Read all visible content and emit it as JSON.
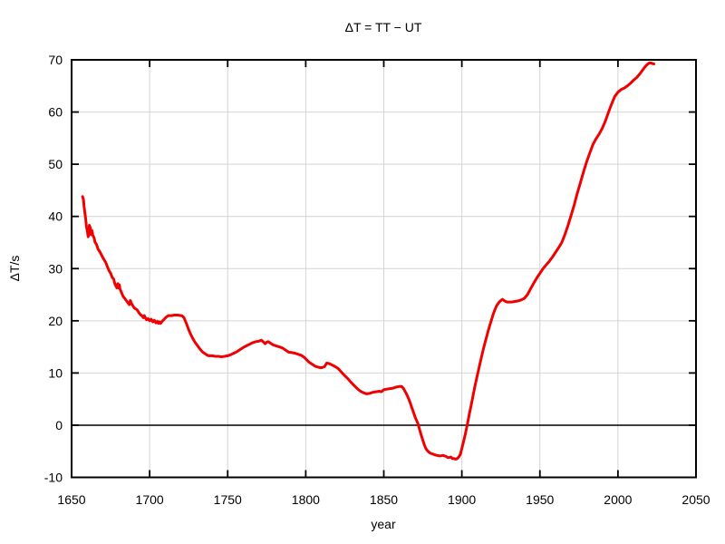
{
  "chart_data": {
    "type": "line",
    "title": "ΔT = TT − UT",
    "xlabel": "year",
    "ylabel": "ΔT/s",
    "xlim": [
      1650,
      2050
    ],
    "ylim": [
      -10,
      70
    ],
    "x_ticks": [
      1650,
      1700,
      1750,
      1800,
      1850,
      1900,
      1950,
      2000,
      2050
    ],
    "y_ticks": [
      -10,
      0,
      10,
      20,
      30,
      40,
      50,
      60,
      70
    ],
    "grid": true,
    "zero_line_at": 0,
    "legend": "none",
    "colors": {
      "line": "#f00000",
      "grid": "#d4d4d4",
      "axis": "#000000",
      "text": "#000000",
      "background": "#ffffff"
    },
    "series": [
      {
        "name": "ΔT",
        "points": [
          [
            1657,
            43.8
          ],
          [
            1657.6,
            43.2
          ],
          [
            1658,
            41.9
          ],
          [
            1658.6,
            40.5
          ],
          [
            1659,
            39.6
          ],
          [
            1659.5,
            38.0
          ],
          [
            1660,
            37.4
          ],
          [
            1660.6,
            36.1
          ],
          [
            1661,
            36.8
          ],
          [
            1661.4,
            38.3
          ],
          [
            1662,
            37.8
          ],
          [
            1662.5,
            36.5
          ],
          [
            1663,
            37.3
          ],
          [
            1663.6,
            36.4
          ],
          [
            1664.5,
            35.8
          ],
          [
            1665,
            35.1
          ],
          [
            1666,
            34.6
          ],
          [
            1667,
            33.7
          ],
          [
            1668,
            33.3
          ],
          [
            1669,
            32.7
          ],
          [
            1670,
            32.1
          ],
          [
            1671,
            31.6
          ],
          [
            1672,
            31.1
          ],
          [
            1673,
            30.3
          ],
          [
            1674,
            29.6
          ],
          [
            1675,
            29.1
          ],
          [
            1676,
            28.3
          ],
          [
            1677,
            28.0
          ],
          [
            1677.5,
            27.3
          ],
          [
            1678,
            26.9
          ],
          [
            1679,
            26.3
          ],
          [
            1679.6,
            27.1
          ],
          [
            1680,
            26.3
          ],
          [
            1680.6,
            26.9
          ],
          [
            1681,
            26.1
          ],
          [
            1682,
            25.4
          ],
          [
            1683,
            24.7
          ],
          [
            1684,
            24.3
          ],
          [
            1685,
            23.9
          ],
          [
            1686,
            23.5
          ],
          [
            1687,
            23.1
          ],
          [
            1687.6,
            23.9
          ],
          [
            1688.4,
            23.3
          ],
          [
            1689,
            23.0
          ],
          [
            1690,
            22.5
          ],
          [
            1691,
            22.3
          ],
          [
            1692,
            22.1
          ],
          [
            1693,
            21.6
          ],
          [
            1694,
            21.2
          ],
          [
            1695,
            21.0
          ],
          [
            1696,
            20.6
          ],
          [
            1696.6,
            21.0
          ],
          [
            1697.4,
            20.5
          ],
          [
            1698,
            20.2
          ],
          [
            1699,
            20.4
          ],
          [
            1700,
            20.0
          ],
          [
            1701,
            20.3
          ],
          [
            1702,
            19.8
          ],
          [
            1703,
            20.1
          ],
          [
            1704,
            19.6
          ],
          [
            1705,
            19.9
          ],
          [
            1705.6,
            19.5
          ],
          [
            1706.4,
            19.8
          ],
          [
            1707,
            19.5
          ],
          [
            1708,
            19.9
          ],
          [
            1709,
            20.2
          ],
          [
            1710,
            20.5
          ],
          [
            1711,
            20.8
          ],
          [
            1712,
            21.0
          ],
          [
            1714,
            21.0
          ],
          [
            1716,
            21.1
          ],
          [
            1718,
            21.1
          ],
          [
            1720,
            21.0
          ],
          [
            1721,
            20.9
          ],
          [
            1722,
            20.6
          ],
          [
            1723,
            19.9
          ],
          [
            1724,
            19.1
          ],
          [
            1725,
            18.3
          ],
          [
            1726,
            17.6
          ],
          [
            1727,
            17.0
          ],
          [
            1728,
            16.4
          ],
          [
            1729,
            15.9
          ],
          [
            1730,
            15.5
          ],
          [
            1731,
            15.1
          ],
          [
            1732,
            14.7
          ],
          [
            1733,
            14.3
          ],
          [
            1734,
            14.0
          ],
          [
            1735,
            13.8
          ],
          [
            1736,
            13.6
          ],
          [
            1737,
            13.4
          ],
          [
            1738,
            13.3
          ],
          [
            1740,
            13.3
          ],
          [
            1742,
            13.2
          ],
          [
            1744,
            13.2
          ],
          [
            1746,
            13.1
          ],
          [
            1748,
            13.2
          ],
          [
            1750,
            13.3
          ],
          [
            1752,
            13.5
          ],
          [
            1754,
            13.8
          ],
          [
            1756,
            14.1
          ],
          [
            1758,
            14.5
          ],
          [
            1760,
            14.9
          ],
          [
            1762,
            15.2
          ],
          [
            1764,
            15.5
          ],
          [
            1766,
            15.8
          ],
          [
            1768,
            16.0
          ],
          [
            1770,
            16.1
          ],
          [
            1771.5,
            16.3
          ],
          [
            1773,
            15.9
          ],
          [
            1774,
            15.6
          ],
          [
            1775,
            15.9
          ],
          [
            1776,
            16.0
          ],
          [
            1777.5,
            15.7
          ],
          [
            1779,
            15.4
          ],
          [
            1781,
            15.2
          ],
          [
            1783,
            15.0
          ],
          [
            1785,
            14.8
          ],
          [
            1787,
            14.4
          ],
          [
            1789,
            14.0
          ],
          [
            1791,
            13.9
          ],
          [
            1793,
            13.8
          ],
          [
            1795,
            13.6
          ],
          [
            1797,
            13.4
          ],
          [
            1799,
            13.0
          ],
          [
            1800,
            12.7
          ],
          [
            1802,
            12.1
          ],
          [
            1804,
            11.7
          ],
          [
            1806,
            11.3
          ],
          [
            1808,
            11.1
          ],
          [
            1810,
            11.0
          ],
          [
            1812,
            11.2
          ],
          [
            1813.5,
            11.9
          ],
          [
            1815,
            11.8
          ],
          [
            1817,
            11.5
          ],
          [
            1819,
            11.2
          ],
          [
            1821,
            10.8
          ],
          [
            1823,
            10.1
          ],
          [
            1825,
            9.5
          ],
          [
            1827,
            8.9
          ],
          [
            1829,
            8.2
          ],
          [
            1831,
            7.6
          ],
          [
            1833,
            7.0
          ],
          [
            1835,
            6.5
          ],
          [
            1837,
            6.2
          ],
          [
            1839,
            6.0
          ],
          [
            1841,
            6.1
          ],
          [
            1843,
            6.3
          ],
          [
            1845,
            6.4
          ],
          [
            1847,
            6.5
          ],
          [
            1848.5,
            6.4
          ],
          [
            1850,
            6.8
          ],
          [
            1852,
            6.9
          ],
          [
            1854,
            7.0
          ],
          [
            1856,
            7.1
          ],
          [
            1858,
            7.3
          ],
          [
            1860,
            7.4
          ],
          [
            1861.5,
            7.4
          ],
          [
            1862.5,
            7.1
          ],
          [
            1864,
            6.3
          ],
          [
            1865,
            5.7
          ],
          [
            1866,
            5.0
          ],
          [
            1867,
            4.2
          ],
          [
            1868,
            3.3
          ],
          [
            1869,
            2.5
          ],
          [
            1870,
            1.6
          ],
          [
            1871,
            0.9
          ],
          [
            1872,
            0.2
          ],
          [
            1873,
            -0.9
          ],
          [
            1874,
            -1.9
          ],
          [
            1875,
            -2.9
          ],
          [
            1876,
            -3.8
          ],
          [
            1877,
            -4.5
          ],
          [
            1878,
            -4.9
          ],
          [
            1879,
            -5.2
          ],
          [
            1880,
            -5.4
          ],
          [
            1882,
            -5.6
          ],
          [
            1884,
            -5.8
          ],
          [
            1886,
            -5.9
          ],
          [
            1888,
            -5.8
          ],
          [
            1890,
            -6.0
          ],
          [
            1891,
            -6.2
          ],
          [
            1892,
            -6.2
          ],
          [
            1893,
            -6.1
          ],
          [
            1894,
            -6.4
          ],
          [
            1895,
            -6.4
          ],
          [
            1896,
            -6.5
          ],
          [
            1897,
            -6.4
          ],
          [
            1898,
            -6.1
          ],
          [
            1899,
            -5.6
          ],
          [
            1900,
            -4.5
          ],
          [
            1901,
            -3.3
          ],
          [
            1902,
            -2.0
          ],
          [
            1903,
            -0.6
          ],
          [
            1904,
            0.9
          ],
          [
            1905,
            2.4
          ],
          [
            1906,
            3.9
          ],
          [
            1907,
            5.4
          ],
          [
            1908,
            6.9
          ],
          [
            1909,
            8.3
          ],
          [
            1910,
            9.7
          ],
          [
            1911,
            11.0
          ],
          [
            1912,
            12.3
          ],
          [
            1913,
            13.6
          ],
          [
            1914,
            14.8
          ],
          [
            1915,
            16.0
          ],
          [
            1916,
            17.1
          ],
          [
            1917,
            18.2
          ],
          [
            1918,
            19.2
          ],
          [
            1919,
            20.2
          ],
          [
            1920,
            21.2
          ],
          [
            1921,
            22.0
          ],
          [
            1922,
            22.7
          ],
          [
            1923,
            23.2
          ],
          [
            1924,
            23.6
          ],
          [
            1925,
            23.9
          ],
          [
            1926,
            24.1
          ],
          [
            1927,
            23.9
          ],
          [
            1928,
            23.7
          ],
          [
            1929,
            23.6
          ],
          [
            1930,
            23.6
          ],
          [
            1932,
            23.6
          ],
          [
            1934,
            23.7
          ],
          [
            1936,
            23.8
          ],
          [
            1938,
            24.0
          ],
          [
            1940,
            24.3
          ],
          [
            1942,
            25.0
          ],
          [
            1944,
            26.1
          ],
          [
            1946,
            27.2
          ],
          [
            1948,
            28.2
          ],
          [
            1950,
            29.1
          ],
          [
            1952,
            30.0
          ],
          [
            1954,
            30.7
          ],
          [
            1956,
            31.4
          ],
          [
            1958,
            32.2
          ],
          [
            1960,
            33.1
          ],
          [
            1962,
            34.0
          ],
          [
            1964,
            35.0
          ],
          [
            1966,
            36.5
          ],
          [
            1968,
            38.3
          ],
          [
            1970,
            40.2
          ],
          [
            1972,
            42.2
          ],
          [
            1974,
            44.5
          ],
          [
            1976,
            46.5
          ],
          [
            1978,
            48.6
          ],
          [
            1980,
            50.5
          ],
          [
            1982,
            52.2
          ],
          [
            1984,
            53.8
          ],
          [
            1986,
            54.9
          ],
          [
            1988,
            55.8
          ],
          [
            1990,
            56.9
          ],
          [
            1992,
            58.3
          ],
          [
            1994,
            60.0
          ],
          [
            1996,
            61.6
          ],
          [
            1998,
            63.0
          ],
          [
            2000,
            63.8
          ],
          [
            2002,
            64.3
          ],
          [
            2004,
            64.6
          ],
          [
            2006,
            65.0
          ],
          [
            2008,
            65.5
          ],
          [
            2010,
            66.1
          ],
          [
            2012,
            66.6
          ],
          [
            2014,
            67.3
          ],
          [
            2016,
            68.1
          ],
          [
            2018,
            68.9
          ],
          [
            2020,
            69.4
          ],
          [
            2021,
            69.4
          ],
          [
            2022,
            69.3
          ],
          [
            2023,
            69.2
          ]
        ]
      }
    ]
  }
}
